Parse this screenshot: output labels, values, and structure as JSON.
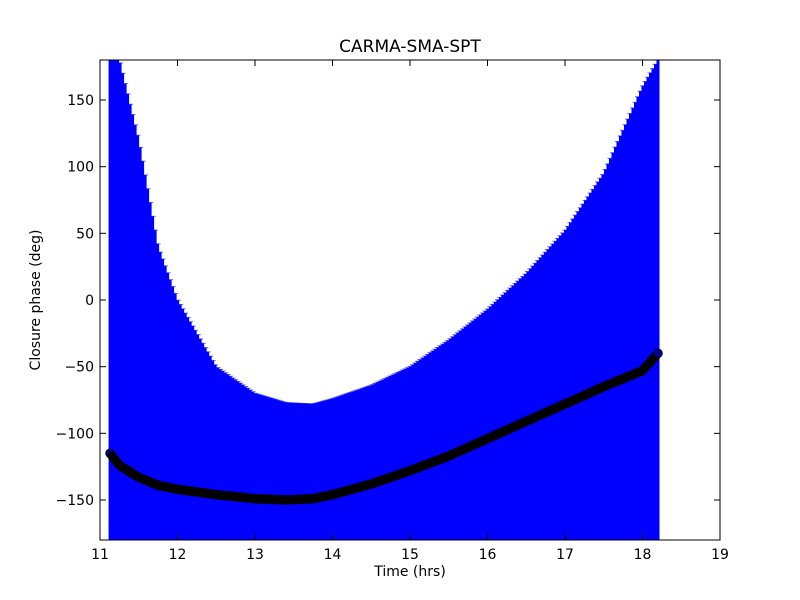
{
  "chart_data": {
    "type": "scatter",
    "title": "CARMA-SMA-SPT",
    "xlabel": "Time (hrs)",
    "ylabel": "Closure phase (deg)",
    "xlim": [
      11,
      19
    ],
    "ylim": [
      -180,
      180
    ],
    "xticks": [
      11,
      12,
      13,
      14,
      15,
      16,
      17,
      18,
      19
    ],
    "yticks": [
      -150,
      -100,
      -50,
      0,
      50,
      100,
      150
    ],
    "xtick_labels": [
      "11",
      "12",
      "13",
      "14",
      "15",
      "16",
      "17",
      "18",
      "19"
    ],
    "ytick_labels": [
      "−150",
      "−100",
      "−50",
      "0",
      "50",
      "100",
      "150"
    ],
    "grid": false,
    "legend": "none",
    "colors": {
      "errorbar": "#0000ff",
      "points": "#000000",
      "edge_points": "#000080",
      "frame": "#000000"
    },
    "series": [
      {
        "marker": "circle",
        "x": [
          11.13,
          11.25,
          11.5,
          11.75,
          12.0,
          12.5,
          13.0,
          13.4,
          13.75,
          14.0,
          14.5,
          15.0,
          15.5,
          16.0,
          16.5,
          17.0,
          17.5,
          18.0,
          18.2
        ],
        "y": [
          -115,
          -124,
          -133,
          -139,
          -142,
          -146,
          -149,
          -150,
          -149,
          -146,
          -138,
          -128,
          -117,
          -104,
          -91,
          -78,
          -65,
          -53,
          -40
        ],
        "error_upper": [
          180,
          180,
          120,
          40,
          0,
          -50,
          -70,
          -77,
          -78,
          -74,
          -64,
          -50,
          -30,
          -7,
          20,
          52,
          95,
          160,
          180
        ],
        "error_lower": [
          -180,
          -180,
          -180,
          -180,
          -180,
          -180,
          -180,
          -180,
          -180,
          -180,
          -180,
          -180,
          -180,
          -180,
          -180,
          -180,
          -180,
          -180,
          -180
        ]
      }
    ]
  }
}
